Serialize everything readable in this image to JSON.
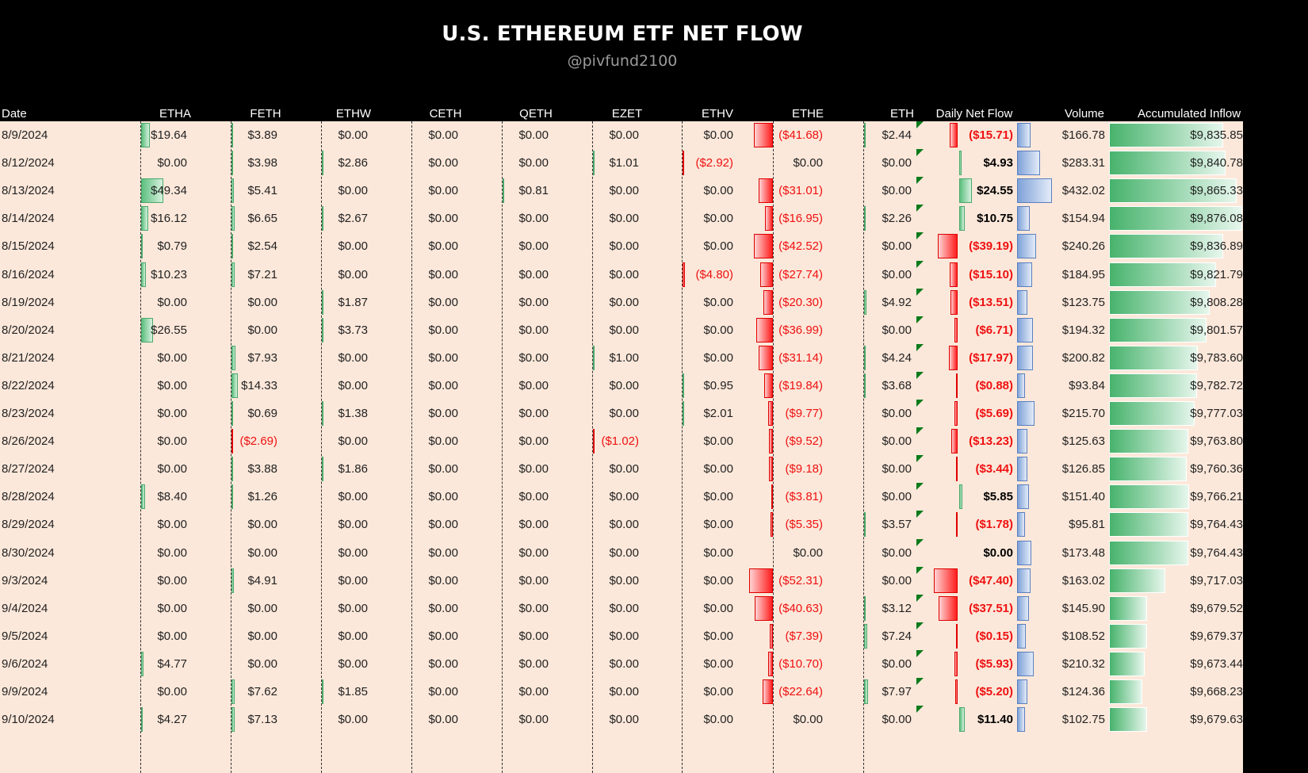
{
  "title": "U.S. ETHEREUM ETF NET FLOW",
  "subtitle": "@pivfund2100",
  "colors": {
    "positive": "#5dbf7f",
    "negative": "#ff1d1d",
    "volume": "#7fa2d8",
    "accumulated": "#47b36c",
    "background": "#fce8da"
  },
  "columns": [
    "Date",
    "ETHA",
    "FETH",
    "ETHW",
    "CETH",
    "QETH",
    "EZET",
    "ETHV",
    "ETHE",
    "ETH",
    "Daily Net Flow",
    "Volume",
    "Accumulated Inflow"
  ],
  "chart_data": {
    "type": "table",
    "title": "U.S. ETHEREUM ETF NET FLOW",
    "columns": [
      "Date",
      "ETHA",
      "FETH",
      "ETHW",
      "CETH",
      "QETH",
      "EZET",
      "ETHV",
      "ETHE",
      "ETH",
      "Daily Net Flow",
      "Volume",
      "Accumulated Inflow"
    ],
    "rows": [
      [
        "8/9/2024",
        "$19.64",
        "$3.89",
        "$0.00",
        "$0.00",
        "$0.00",
        "$0.00",
        "$0.00",
        "($41.68)",
        "$2.44",
        "($15.71)",
        "$166.78",
        "$9,835.85"
      ],
      [
        "8/12/2024",
        "$0.00",
        "$3.98",
        "$2.86",
        "$0.00",
        "$0.00",
        "$1.01",
        "($2.92)",
        "$0.00",
        "$0.00",
        "$4.93",
        "$283.31",
        "$9,840.78"
      ],
      [
        "8/13/2024",
        "$49.34",
        "$5.41",
        "$0.00",
        "$0.00",
        "$0.81",
        "$0.00",
        "$0.00",
        "($31.01)",
        "$0.00",
        "$24.55",
        "$432.02",
        "$9,865.33"
      ],
      [
        "8/14/2024",
        "$16.12",
        "$6.65",
        "$2.67",
        "$0.00",
        "$0.00",
        "$0.00",
        "$0.00",
        "($16.95)",
        "$2.26",
        "$10.75",
        "$154.94",
        "$9,876.08"
      ],
      [
        "8/15/2024",
        "$0.79",
        "$2.54",
        "$0.00",
        "$0.00",
        "$0.00",
        "$0.00",
        "$0.00",
        "($42.52)",
        "$0.00",
        "($39.19)",
        "$240.26",
        "$9,836.89"
      ],
      [
        "8/16/2024",
        "$10.23",
        "$7.21",
        "$0.00",
        "$0.00",
        "$0.00",
        "$0.00",
        "($4.80)",
        "($27.74)",
        "$0.00",
        "($15.10)",
        "$184.95",
        "$9,821.79"
      ],
      [
        "8/19/2024",
        "$0.00",
        "$0.00",
        "$1.87",
        "$0.00",
        "$0.00",
        "$0.00",
        "$0.00",
        "($20.30)",
        "$4.92",
        "($13.51)",
        "$123.75",
        "$9,808.28"
      ],
      [
        "8/20/2024",
        "$26.55",
        "$0.00",
        "$3.73",
        "$0.00",
        "$0.00",
        "$0.00",
        "$0.00",
        "($36.99)",
        "$0.00",
        "($6.71)",
        "$194.32",
        "$9,801.57"
      ],
      [
        "8/21/2024",
        "$0.00",
        "$7.93",
        "$0.00",
        "$0.00",
        "$0.00",
        "$1.00",
        "$0.00",
        "($31.14)",
        "$4.24",
        "($17.97)",
        "$200.82",
        "$9,783.60"
      ],
      [
        "8/22/2024",
        "$0.00",
        "$14.33",
        "$0.00",
        "$0.00",
        "$0.00",
        "$0.00",
        "$0.95",
        "($19.84)",
        "$3.68",
        "($0.88)",
        "$93.84",
        "$9,782.72"
      ],
      [
        "8/23/2024",
        "$0.00",
        "$0.69",
        "$1.38",
        "$0.00",
        "$0.00",
        "$0.00",
        "$2.01",
        "($9.77)",
        "$0.00",
        "($5.69)",
        "$215.70",
        "$9,777.03"
      ],
      [
        "8/26/2024",
        "$0.00",
        "($2.69)",
        "$0.00",
        "$0.00",
        "$0.00",
        "($1.02)",
        "$0.00",
        "($9.52)",
        "$0.00",
        "($13.23)",
        "$125.63",
        "$9,763.80"
      ],
      [
        "8/27/2024",
        "$0.00",
        "$3.88",
        "$1.86",
        "$0.00",
        "$0.00",
        "$0.00",
        "$0.00",
        "($9.18)",
        "$0.00",
        "($3.44)",
        "$126.85",
        "$9,760.36"
      ],
      [
        "8/28/2024",
        "$8.40",
        "$1.26",
        "$0.00",
        "$0.00",
        "$0.00",
        "$0.00",
        "$0.00",
        "($3.81)",
        "$0.00",
        "$5.85",
        "$151.40",
        "$9,766.21"
      ],
      [
        "8/29/2024",
        "$0.00",
        "$0.00",
        "$0.00",
        "$0.00",
        "$0.00",
        "$0.00",
        "$0.00",
        "($5.35)",
        "$3.57",
        "($1.78)",
        "$95.81",
        "$9,764.43"
      ],
      [
        "8/30/2024",
        "$0.00",
        "$0.00",
        "$0.00",
        "$0.00",
        "$0.00",
        "$0.00",
        "$0.00",
        "$0.00",
        "$0.00",
        "$0.00",
        "$173.48",
        "$9,764.43"
      ],
      [
        "9/3/2024",
        "$0.00",
        "$4.91",
        "$0.00",
        "$0.00",
        "$0.00",
        "$0.00",
        "$0.00",
        "($52.31)",
        "$0.00",
        "($47.40)",
        "$163.02",
        "$9,717.03"
      ],
      [
        "9/4/2024",
        "$0.00",
        "$0.00",
        "$0.00",
        "$0.00",
        "$0.00",
        "$0.00",
        "$0.00",
        "($40.63)",
        "$3.12",
        "($37.51)",
        "$145.90",
        "$9,679.52"
      ],
      [
        "9/5/2024",
        "$0.00",
        "$0.00",
        "$0.00",
        "$0.00",
        "$0.00",
        "$0.00",
        "$0.00",
        "($7.39)",
        "$7.24",
        "($0.15)",
        "$108.52",
        "$9,679.37"
      ],
      [
        "9/6/2024",
        "$4.77",
        "$0.00",
        "$0.00",
        "$0.00",
        "$0.00",
        "$0.00",
        "$0.00",
        "($10.70)",
        "$0.00",
        "($5.93)",
        "$210.32",
        "$9,673.44"
      ],
      [
        "9/9/2024",
        "$0.00",
        "$7.62",
        "$1.85",
        "$0.00",
        "$0.00",
        "$0.00",
        "$0.00",
        "($22.64)",
        "$7.97",
        "($5.20)",
        "$124.36",
        "$9,668.23"
      ],
      [
        "9/10/2024",
        "$4.27",
        "$7.13",
        "$0.00",
        "$0.00",
        "$0.00",
        "$0.00",
        "$0.00",
        "$0.00",
        "$0.00",
        "$11.40",
        "$102.75",
        "$9,679.63"
      ]
    ]
  }
}
